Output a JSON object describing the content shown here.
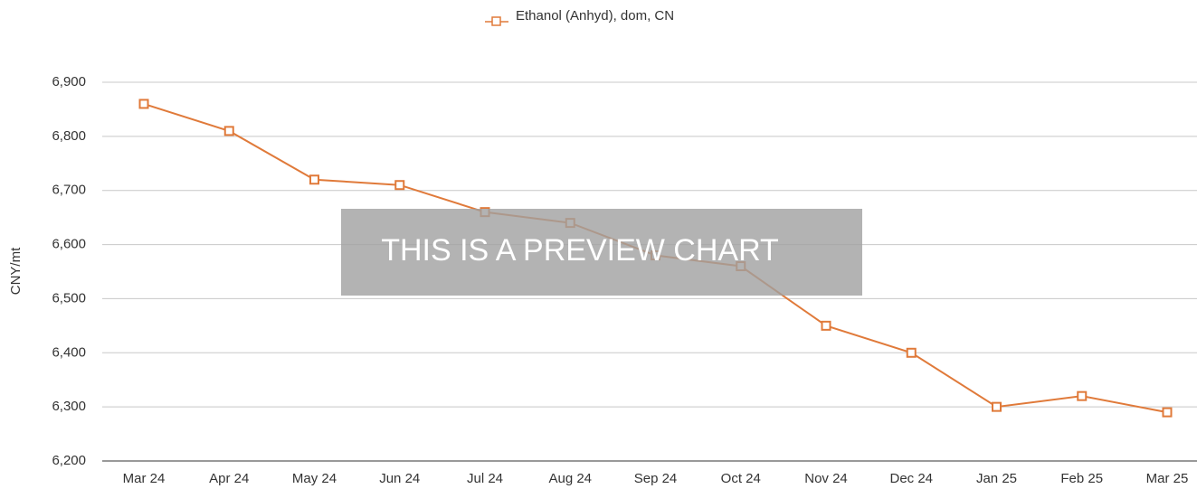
{
  "chart_data": {
    "type": "line",
    "y_label": "CNY/mt",
    "annotation": "THIS IS A PREVIEW CHART",
    "categories": [
      "Mar 24",
      "Apr 24",
      "May 24",
      "Jun 24",
      "Jul 24",
      "Aug 24",
      "Sep 24",
      "Oct 24",
      "Nov 24",
      "Dec 24",
      "Jan 25",
      "Feb 25",
      "Mar 25"
    ],
    "series": [
      {
        "name": "Ethanol (Anhyd), dom, CN",
        "color": "#e07a3a",
        "values": [
          6860,
          6810,
          6720,
          6710,
          6660,
          6640,
          6580,
          6560,
          6450,
          6400,
          6300,
          6320,
          6290
        ]
      }
    ],
    "ylim": [
      6200,
      6900
    ],
    "yticks": [
      {
        "value": 6200,
        "label": "6,200"
      },
      {
        "value": 6300,
        "label": "6,300"
      },
      {
        "value": 6400,
        "label": "6,400"
      },
      {
        "value": 6500,
        "label": "6,500"
      },
      {
        "value": 6600,
        "label": "6,600"
      },
      {
        "value": 6700,
        "label": "6,700"
      },
      {
        "value": 6800,
        "label": "6,800"
      },
      {
        "value": 6900,
        "label": "6,900"
      }
    ],
    "grid": true,
    "legend": "top"
  }
}
